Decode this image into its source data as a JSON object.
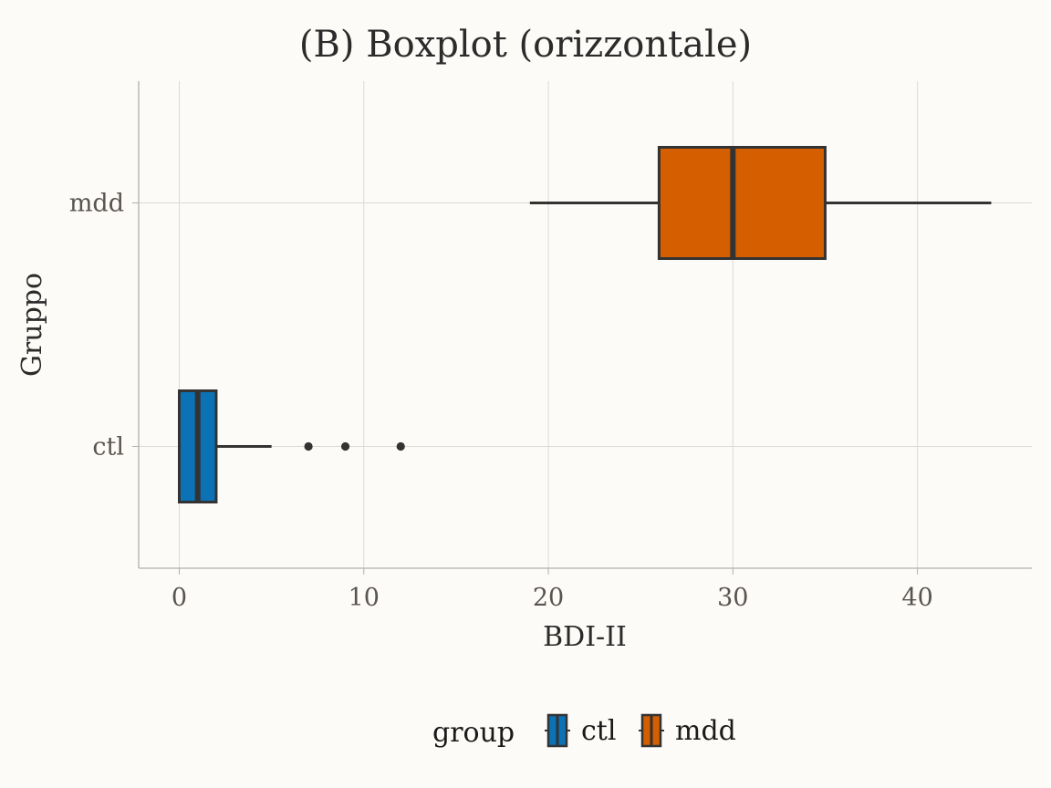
{
  "chart_data": {
    "type": "boxplot",
    "orientation": "horizontal",
    "title": "(B) Boxplot (orizzontale)",
    "xlabel": "BDI-II",
    "ylabel": "Gruppo",
    "xlim": [
      -2.2,
      46.2
    ],
    "xticks": [
      0,
      10,
      20,
      30,
      40
    ],
    "grid": true,
    "categories": [
      "ctl",
      "mdd"
    ],
    "series": [
      {
        "name": "ctl",
        "color": "#0a72b5",
        "min": 0,
        "q1": 0,
        "median": 1,
        "q3": 2,
        "max": 5,
        "outliers": [
          7,
          9,
          12
        ]
      },
      {
        "name": "mdd",
        "color": "#d55e00",
        "min": 19,
        "q1": 26,
        "median": 30,
        "q3": 35,
        "max": 44,
        "outliers": []
      }
    ],
    "legend": {
      "title": "group",
      "position": "bottom",
      "items": [
        "ctl",
        "mdd"
      ]
    }
  }
}
